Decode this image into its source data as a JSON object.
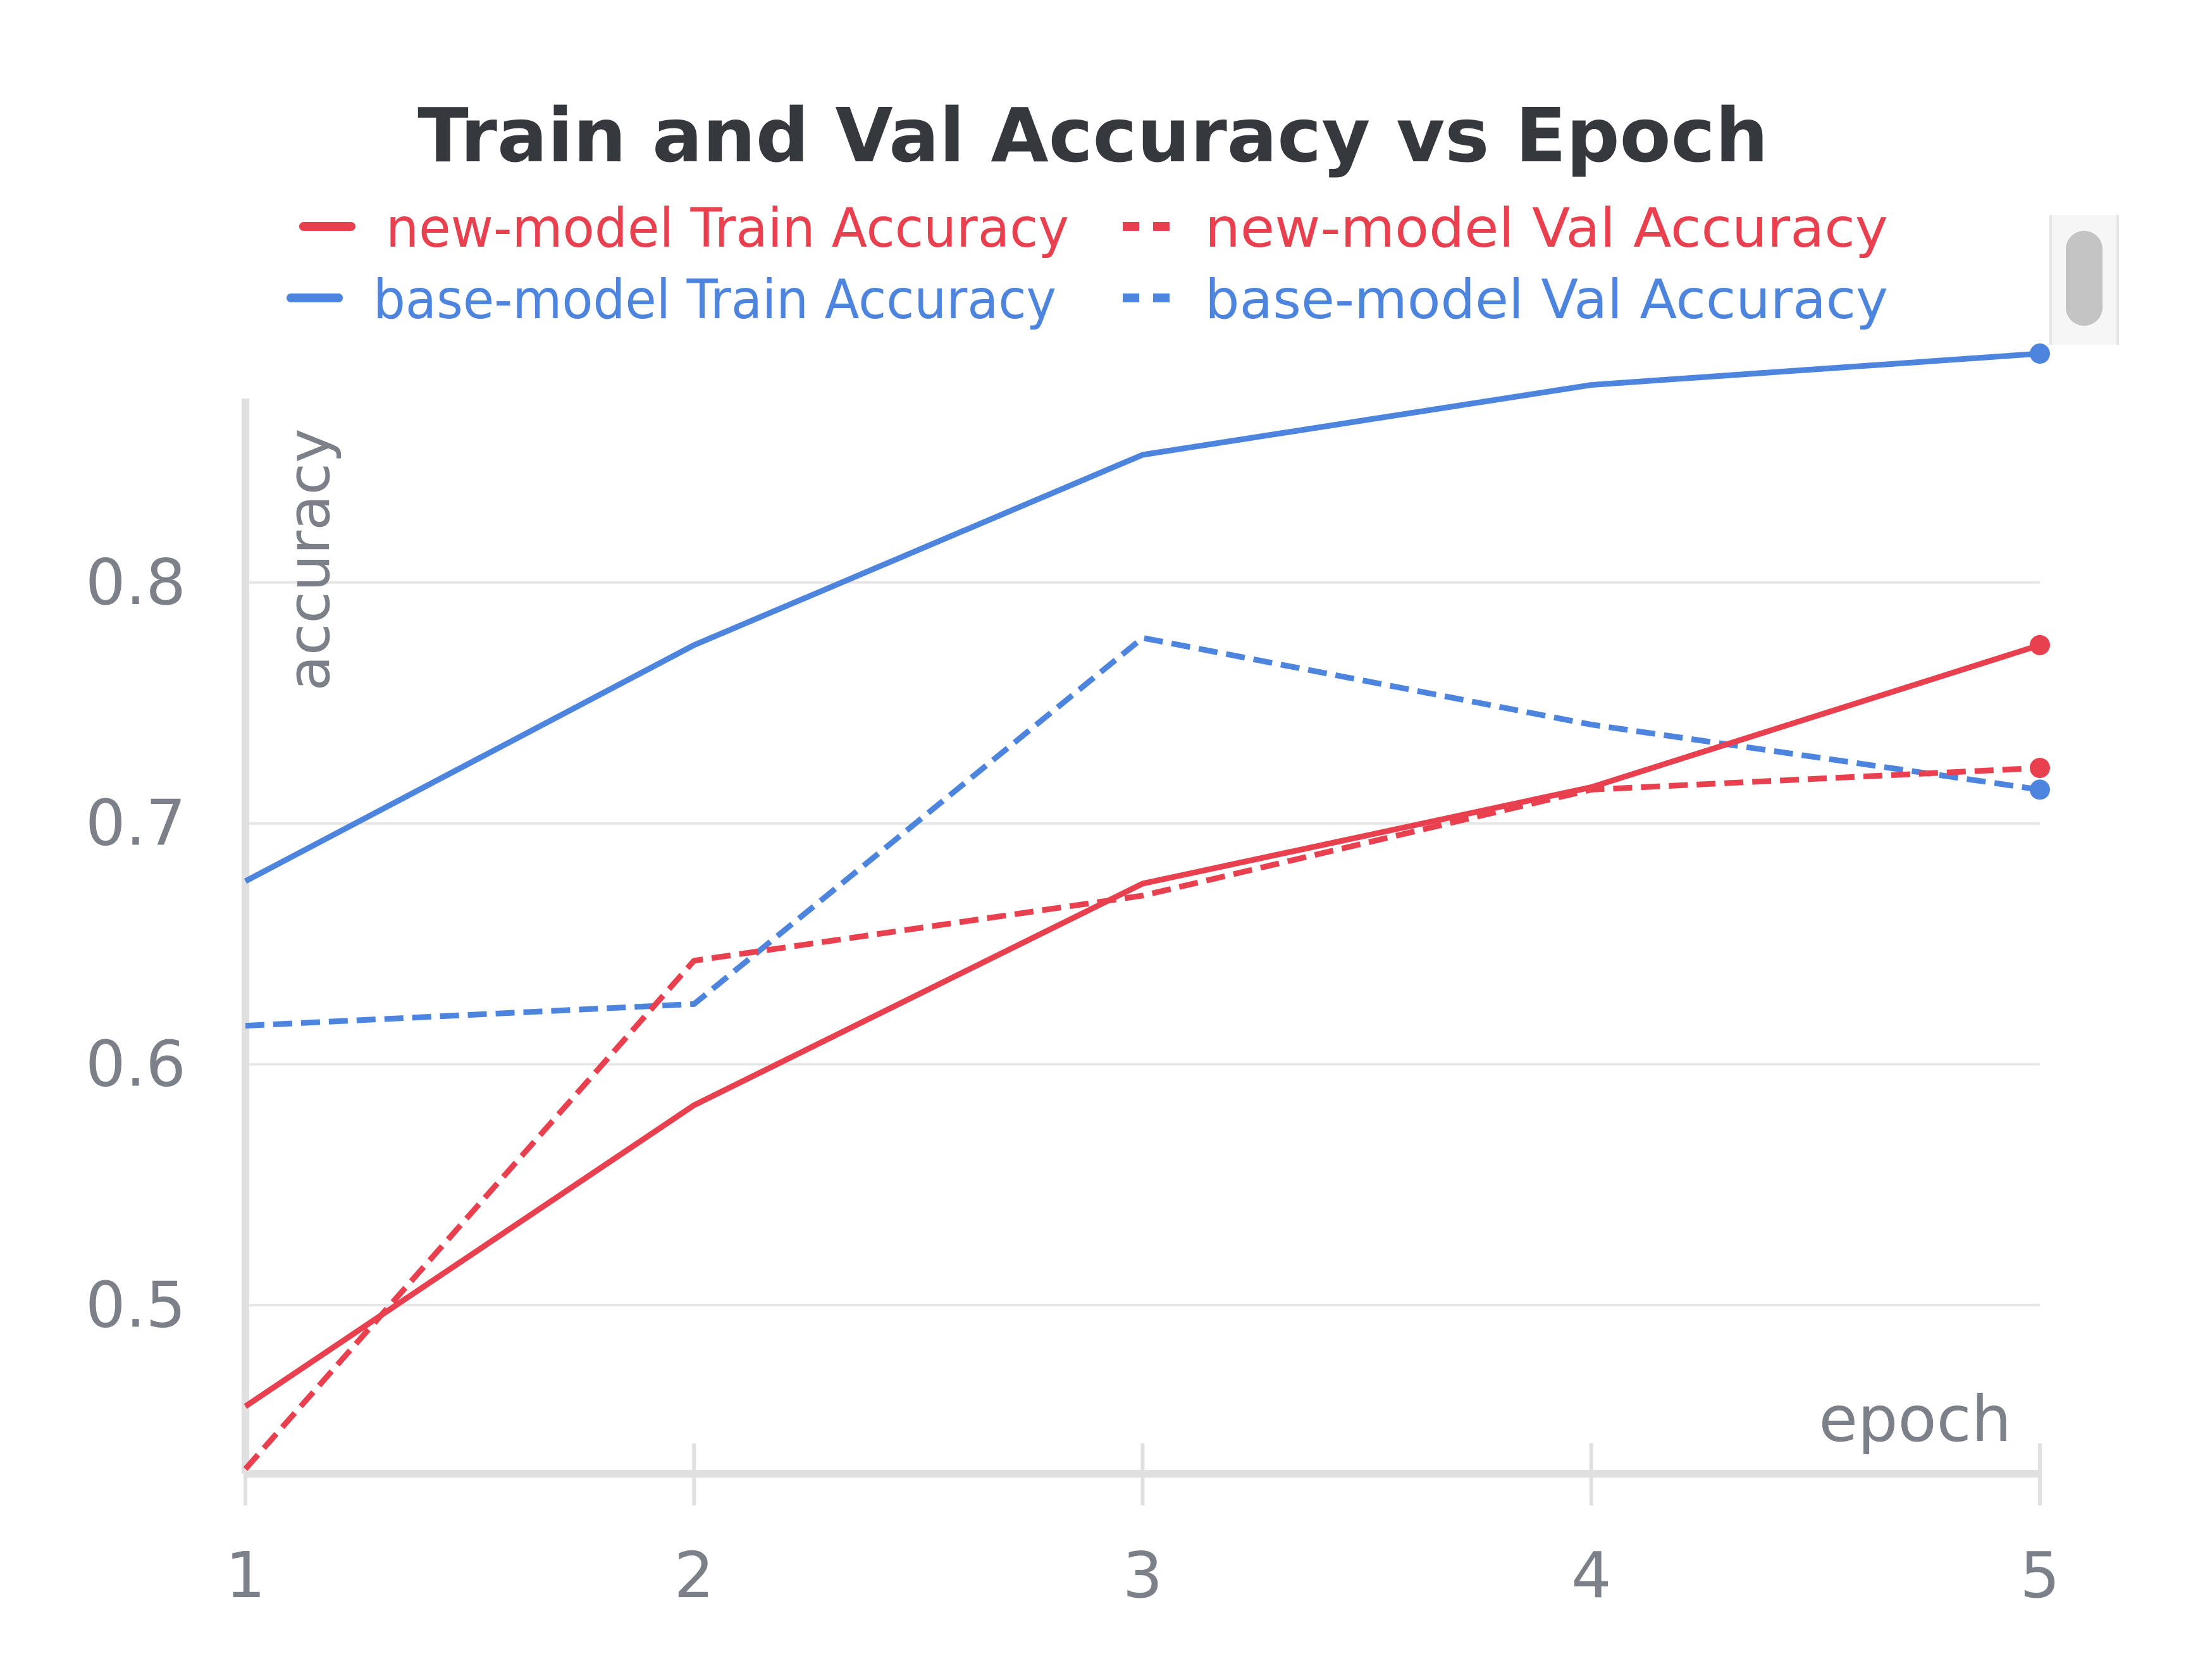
{
  "chart_data": {
    "type": "line",
    "title": "Train and Val Accuracy vs Epoch",
    "xlabel": "epoch",
    "ylabel": "accuracy",
    "x": [
      1,
      2,
      3,
      4,
      5
    ],
    "xticks": [
      "1",
      "2",
      "3",
      "4",
      "5"
    ],
    "yticks": [
      "0.5",
      "0.6",
      "0.7",
      "0.8"
    ],
    "xlim": [
      1,
      5
    ],
    "ylim": [
      0.43,
      0.9
    ],
    "grid": true,
    "legend_position": "top",
    "series": [
      {
        "name": "new-model Train Accuracy",
        "color": "#e8404e",
        "style": "solid",
        "values": [
          0.458,
          0.583,
          0.675,
          0.715,
          0.774
        ]
      },
      {
        "name": "new-model Val Accuracy",
        "color": "#e8404e",
        "style": "dashed",
        "values": [
          0.432,
          0.643,
          0.67,
          0.714,
          0.723
        ]
      },
      {
        "name": "base-model Train Accuracy",
        "color": "#4c84de",
        "style": "solid",
        "values": [
          0.676,
          0.774,
          0.853,
          0.882,
          0.895
        ]
      },
      {
        "name": "base-model Val Accuracy",
        "color": "#4c84de",
        "style": "dashed",
        "values": [
          0.616,
          0.625,
          0.777,
          0.741,
          0.714
        ]
      }
    ]
  }
}
